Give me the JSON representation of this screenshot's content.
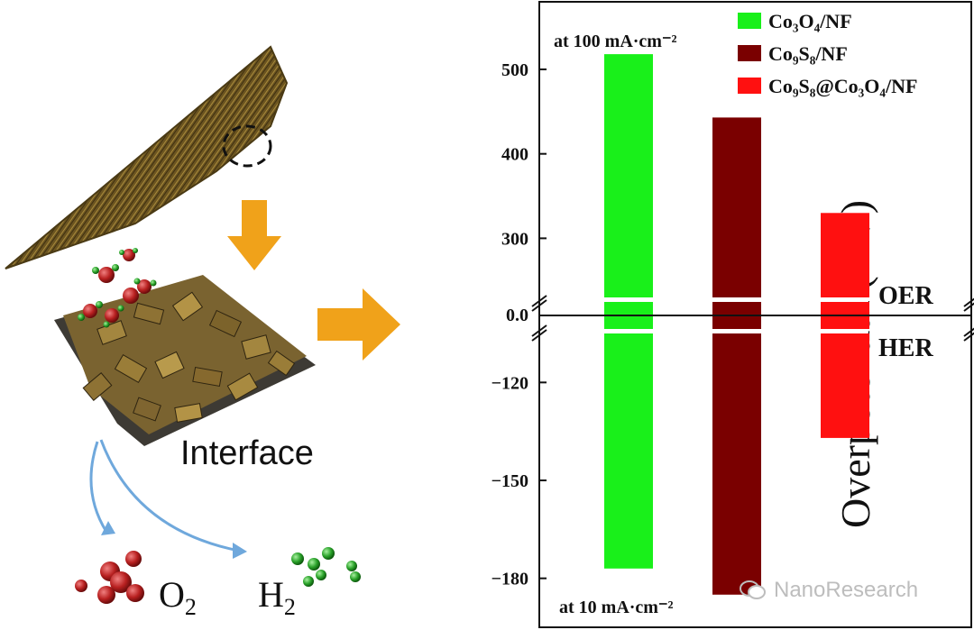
{
  "schematic": {
    "interface_label": "Interface",
    "o2_label": "O",
    "o2_sub": "2",
    "h2_label": "H",
    "h2_sub": "2"
  },
  "watermark": {
    "text": "NanoResearch",
    "icon": "wechat-icon"
  },
  "colors": {
    "co3o4": "#19f01a",
    "co9s8": "#7a0000",
    "composite": "#ff1010",
    "arrow": "#f0a21a",
    "curve_arrow": "#6fa8dc"
  },
  "chart_data": {
    "type": "bar",
    "ylabel": "Overpotential (mV)",
    "series": [
      {
        "name": "Co₃O₄/NF",
        "oer": 518,
        "her": -177,
        "color": "#19f01a"
      },
      {
        "name": "Co₉S₈/NF",
        "oer": 443,
        "her": -185,
        "color": "#7a0000"
      },
      {
        "name": "Co₉S₈@Co₃O₄/NF",
        "oer": 330,
        "her": -137,
        "color": "#ff1010"
      }
    ],
    "oer_axis": {
      "ticks": [
        300,
        400,
        500
      ],
      "range": [
        230,
        580
      ]
    },
    "her_axis": {
      "ticks": [
        -120,
        -150,
        -180
      ],
      "range": [
        -105,
        -195
      ]
    },
    "zero_label": "0.0",
    "region_labels": {
      "top": "OER",
      "bottom": "HER"
    },
    "annotations": {
      "top": "at 100 mA·cm⁻²",
      "bottom": "at 10 mA·cm⁻²"
    },
    "legend_placement": "top-right"
  }
}
